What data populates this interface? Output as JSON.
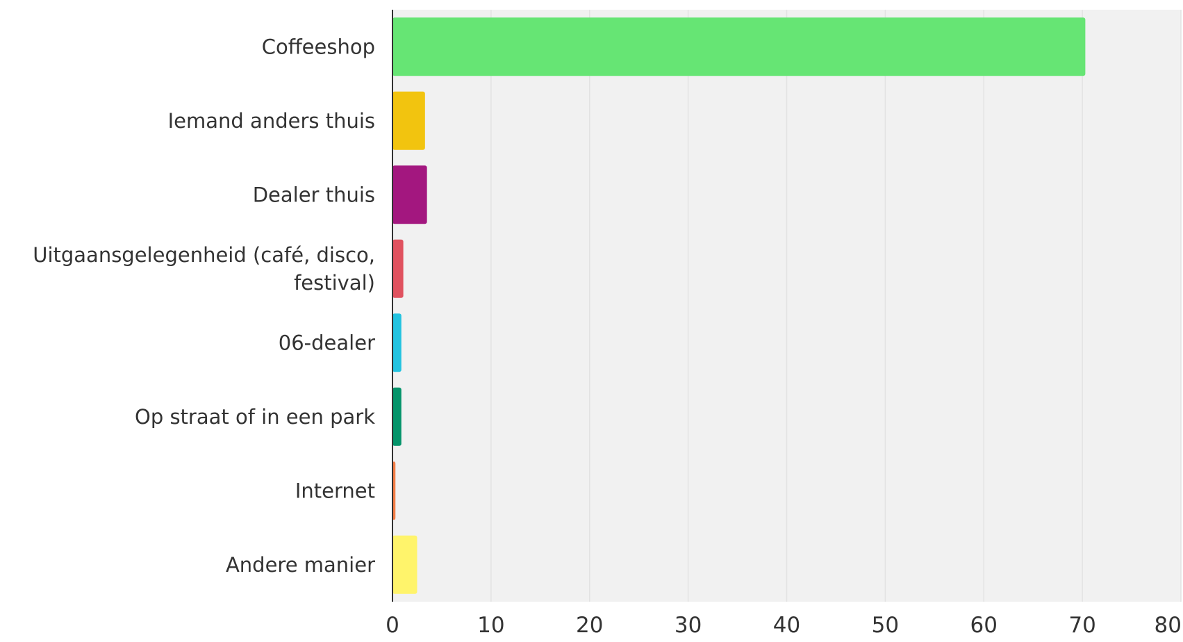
{
  "chart_data": {
    "type": "bar",
    "orientation": "horizontal",
    "title": "",
    "xlabel": "",
    "ylabel": "",
    "categories": [
      "Coffeeshop",
      "Iemand anders thuis",
      "Dealer thuis",
      "Uitgaansgelegenheid (café, disco, festival)",
      "06-dealer",
      "Op straat of in een park",
      "Internet",
      "Andere manier"
    ],
    "category_lines": [
      [
        "Coffeeshop"
      ],
      [
        "Iemand anders thuis"
      ],
      [
        "Dealer thuis"
      ],
      [
        "Uitgaansgelegenheid (café, disco,",
        "festival)"
      ],
      [
        "06-dealer"
      ],
      [
        "Op straat of in een park"
      ],
      [
        "Internet"
      ],
      [
        "Andere manier"
      ]
    ],
    "values": [
      70.3,
      3.3,
      3.5,
      1.1,
      0.9,
      0.9,
      0.3,
      2.5
    ],
    "colors": [
      "#66e574",
      "#f2c40f",
      "#a3177f",
      "#e0525f",
      "#23c3e0",
      "#04946a",
      "#f27d46",
      "#fff46b"
    ],
    "xlim": [
      0,
      80
    ],
    "xticks": [
      0,
      10,
      20,
      30,
      40,
      50,
      60,
      70,
      80
    ],
    "grid": true,
    "plot_background": "#f1f1f1",
    "gridline_color": "#e2e2e2",
    "axis_color": "#333333",
    "legend": "none"
  }
}
